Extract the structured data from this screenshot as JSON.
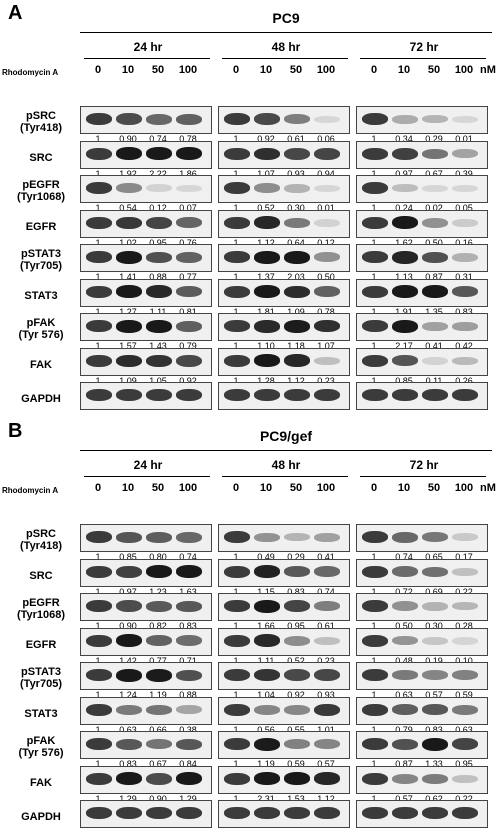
{
  "treatment_label": "Rhodomycin A",
  "concentration_unit": "nM",
  "concentrations": [
    "0",
    "10",
    "50",
    "100"
  ],
  "panels": [
    {
      "letter": "A",
      "cell_line": "PC9",
      "timepoints": [
        {
          "label": "24 hr",
          "values": {
            "pSRC": [
              "1",
              "0.90",
              "0.74",
              "0.78"
            ],
            "SRC": [
              "1",
              "1.92",
              "2.22",
              "1.86"
            ],
            "pEGFR": [
              "1",
              "0.54",
              "0.12",
              "0.07"
            ],
            "EGFR": [
              "1",
              "1.02",
              "0.95",
              "0.76"
            ],
            "pSTAT3": [
              "1",
              "1.41",
              "0.88",
              "0.77"
            ],
            "STAT3": [
              "1",
              "1.27",
              "1.11",
              "0.81"
            ],
            "pFAK": [
              "1",
              "1.57",
              "1.43",
              "0.79"
            ],
            "FAK": [
              "1",
              "1.09",
              "1.05",
              "0.92"
            ]
          }
        },
        {
          "label": "48 hr",
          "values": {
            "pSRC": [
              "1",
              "0.92",
              "0.61",
              "0.06"
            ],
            "SRC": [
              "1",
              "1.07",
              "0.93",
              "0.94"
            ],
            "pEGFR": [
              "1",
              "0.52",
              "0.30",
              "0.01"
            ],
            "EGFR": [
              "1",
              "1.12",
              "0.64",
              "0.12"
            ],
            "pSTAT3": [
              "1",
              "1.37",
              "2.03",
              "0.50"
            ],
            "STAT3": [
              "1",
              "1.81",
              "1.09",
              "0.78"
            ],
            "pFAK": [
              "1",
              "1.10",
              "1.18",
              "1.07"
            ],
            "FAK": [
              "1",
              "1.28",
              "1.12",
              "0.23"
            ]
          }
        },
        {
          "label": "72 hr",
          "values": {
            "pSRC": [
              "1",
              "0.34",
              "0.29",
              "0.01"
            ],
            "SRC": [
              "1",
              "0.97",
              "0.67",
              "0.39"
            ],
            "pEGFR": [
              "1",
              "0.24",
              "0.02",
              "0.05"
            ],
            "EGFR": [
              "1",
              "1.62",
              "0.50",
              "0.16"
            ],
            "pSTAT3": [
              "1",
              "1.13",
              "0.87",
              "0.31"
            ],
            "STAT3": [
              "1",
              "1.91",
              "1.35",
              "0.83"
            ],
            "pFAK": [
              "1",
              "2.17",
              "0.41",
              "0.42"
            ],
            "FAK": [
              "1",
              "0.85",
              "0.11",
              "0.26"
            ]
          }
        }
      ]
    },
    {
      "letter": "B",
      "cell_line": "PC9/gef",
      "timepoints": [
        {
          "label": "24 hr",
          "values": {
            "pSRC": [
              "1",
              "0.85",
              "0.80",
              "0.74"
            ],
            "SRC": [
              "1",
              "0.97",
              "1.23",
              "1.63"
            ],
            "pEGFR": [
              "1",
              "0.90",
              "0.82",
              "0.83"
            ],
            "EGFR": [
              "1",
              "1.42",
              "0.77",
              "0.71"
            ],
            "pSTAT3": [
              "1",
              "1.24",
              "1.19",
              "0.88"
            ],
            "STAT3": [
              "1",
              "0.63",
              "0.66",
              "0.38"
            ],
            "pFAK": [
              "1",
              "0.83",
              "0.67",
              "0.84"
            ],
            "FAK": [
              "1",
              "1.29",
              "0.90",
              "1.29"
            ]
          }
        },
        {
          "label": "48 hr",
          "values": {
            "pSRC": [
              "1",
              "0.49",
              "0.29",
              "0.41"
            ],
            "SRC": [
              "1",
              "1.15",
              "0.83",
              "0.74"
            ],
            "pEGFR": [
              "1",
              "1.66",
              "0.95",
              "0.61"
            ],
            "EGFR": [
              "1",
              "1.11",
              "0.52",
              "0.23"
            ],
            "pSTAT3": [
              "1",
              "1.04",
              "0.92",
              "0.93"
            ],
            "STAT3": [
              "1",
              "0.56",
              "0.55",
              "1.01"
            ],
            "pFAK": [
              "1",
              "1.19",
              "0.59",
              "0.57"
            ],
            "FAK": [
              "1",
              "2.31",
              "1.53",
              "1.12"
            ]
          }
        },
        {
          "label": "72 hr",
          "values": {
            "pSRC": [
              "1",
              "0.74",
              "0.65",
              "0.17"
            ],
            "SRC": [
              "1",
              "0.72",
              "0.69",
              "0.22"
            ],
            "pEGFR": [
              "1",
              "0.50",
              "0.30",
              "0.28"
            ],
            "EGFR": [
              "1",
              "0.48",
              "0.19",
              "0.10"
            ],
            "pSTAT3": [
              "1",
              "0.63",
              "0.57",
              "0.59"
            ],
            "STAT3": [
              "1",
              "0.79",
              "0.83",
              "0.63"
            ],
            "pFAK": [
              "1",
              "0.87",
              "1.33",
              "0.95"
            ],
            "FAK": [
              "1",
              "0.57",
              "0.62",
              "0.22"
            ]
          }
        }
      ]
    }
  ],
  "rows": [
    {
      "key": "pSRC",
      "line1": "pSRC",
      "line2": "(Tyr418)"
    },
    {
      "key": "SRC",
      "line1": "SRC",
      "line2": ""
    },
    {
      "key": "pEGFR",
      "line1": "pEGFR",
      "line2": "(Tyr1068)"
    },
    {
      "key": "EGFR",
      "line1": "EGFR",
      "line2": ""
    },
    {
      "key": "pSTAT3",
      "line1": "pSTAT3",
      "line2": "(Tyr705)"
    },
    {
      "key": "STAT3",
      "line1": "STAT3",
      "line2": ""
    },
    {
      "key": "pFAK",
      "line1": "pFAK",
      "line2": "(Tyr 576)"
    },
    {
      "key": "FAK",
      "line1": "FAK",
      "line2": ""
    },
    {
      "key": "GAPDH",
      "line1": "GAPDH",
      "line2": ""
    }
  ]
}
